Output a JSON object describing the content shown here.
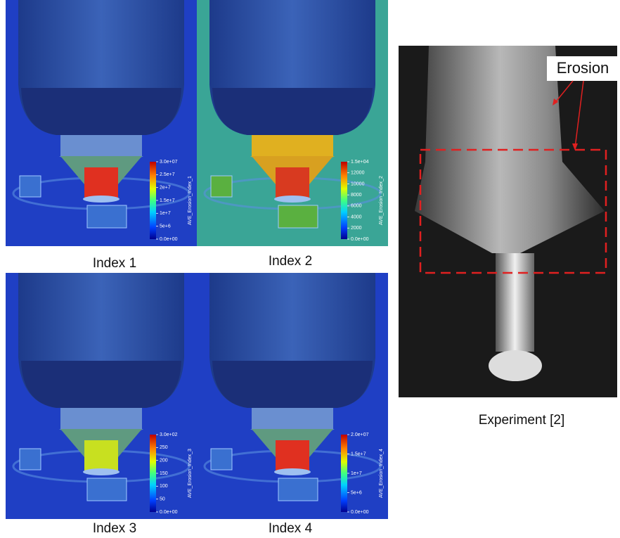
{
  "panels": [
    {
      "label": "Index 1",
      "colorbar": {
        "title": "AVE_Erosion_Index_1",
        "ticks": [
          "3.0e+07",
          "2.5e+7",
          "2e+7",
          "1.5e+7",
          "1e+7",
          "5e+6",
          "0.0e+00"
        ]
      }
    },
    {
      "label": "Index 2",
      "colorbar": {
        "title": "AVE_Erosion_Index_2",
        "ticks": [
          "1.5e+04",
          "12000",
          "10000",
          "8000",
          "6000",
          "4000",
          "2000",
          "0.0e+00"
        ]
      }
    },
    {
      "label": "Index 3",
      "colorbar": {
        "title": "AVE_Erosion_Index_3",
        "ticks": [
          "3.0e+02",
          "250",
          "200",
          "150",
          "100",
          "50",
          "0.0e+00"
        ]
      }
    },
    {
      "label": "Index 4",
      "colorbar": {
        "title": "AVE_Erosion_Index_4",
        "ticks": [
          "2.0e+07",
          "1.5e+7",
          "1e+7",
          "5e+6",
          "0.0e+00"
        ]
      }
    }
  ],
  "experiment": {
    "label": "Experiment [2]",
    "annotation": "Erosion"
  }
}
